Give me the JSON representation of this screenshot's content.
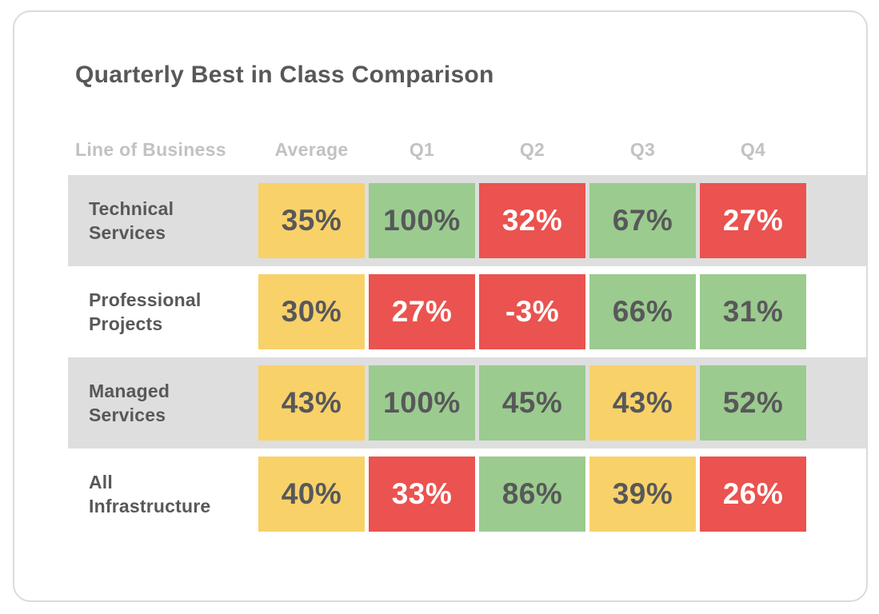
{
  "title": "Quarterly Best in Class Comparison",
  "table": {
    "columns": [
      "Line of Business",
      "Average",
      "Q1",
      "Q2",
      "Q3",
      "Q4"
    ],
    "rows": [
      {
        "label": "Technical Services",
        "cells": [
          {
            "value": "35%",
            "status": "warn"
          },
          {
            "value": "100%",
            "status": "good"
          },
          {
            "value": "32%",
            "status": "bad"
          },
          {
            "value": "67%",
            "status": "good"
          },
          {
            "value": "27%",
            "status": "bad"
          }
        ]
      },
      {
        "label": "Professional Projects",
        "cells": [
          {
            "value": "30%",
            "status": "warn"
          },
          {
            "value": "27%",
            "status": "bad"
          },
          {
            "value": "-3%",
            "status": "bad"
          },
          {
            "value": "66%",
            "status": "good"
          },
          {
            "value": "31%",
            "status": "good"
          }
        ]
      },
      {
        "label": "Managed Services",
        "cells": [
          {
            "value": "43%",
            "status": "warn"
          },
          {
            "value": "100%",
            "status": "good"
          },
          {
            "value": "45%",
            "status": "good"
          },
          {
            "value": "43%",
            "status": "warn"
          },
          {
            "value": "52%",
            "status": "good"
          }
        ]
      },
      {
        "label": "All Infrastructure",
        "cells": [
          {
            "value": "40%",
            "status": "warn"
          },
          {
            "value": "33%",
            "status": "bad"
          },
          {
            "value": "86%",
            "status": "good"
          },
          {
            "value": "39%",
            "status": "warn"
          },
          {
            "value": "26%",
            "status": "bad"
          }
        ]
      }
    ]
  },
  "colors": {
    "good": "#9bcb8f",
    "warn": "#f8d169",
    "bad": "#ea534f",
    "stripe": "#dedede",
    "text_dark": "#58585a",
    "text_on_bad": "#ffffff",
    "header_text": "#c2c2c2",
    "card_border": "#dbdbdb"
  },
  "chart_data": {
    "type": "table",
    "title": "Quarterly Best in Class Comparison",
    "columns": [
      "Line of Business",
      "Average",
      "Q1",
      "Q2",
      "Q3",
      "Q4"
    ],
    "unit": "%",
    "rows": [
      {
        "label": "Technical Services",
        "values": [
          35,
          100,
          32,
          67,
          27
        ],
        "cell_colors": [
          "yellow",
          "green",
          "red",
          "green",
          "red"
        ]
      },
      {
        "label": "Professional Projects",
        "values": [
          30,
          27,
          -3,
          66,
          31
        ],
        "cell_colors": [
          "yellow",
          "red",
          "red",
          "green",
          "green"
        ]
      },
      {
        "label": "Managed Services",
        "values": [
          43,
          100,
          45,
          43,
          52
        ],
        "cell_colors": [
          "yellow",
          "green",
          "green",
          "yellow",
          "green"
        ]
      },
      {
        "label": "All Infrastructure",
        "values": [
          40,
          33,
          86,
          39,
          26
        ],
        "cell_colors": [
          "yellow",
          "red",
          "green",
          "yellow",
          "red"
        ]
      }
    ],
    "layout_hints": {
      "striped_rows": [
        0,
        2
      ],
      "value_text_dark_on": [
        "yellow",
        "green"
      ],
      "value_text_white_on": [
        "red"
      ]
    }
  }
}
